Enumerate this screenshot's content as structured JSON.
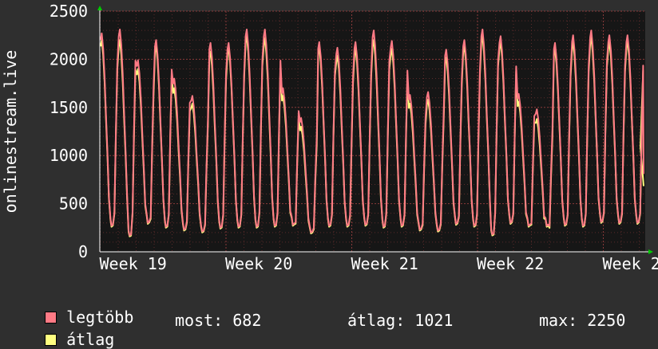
{
  "chart_data": {
    "type": "line",
    "ylabel": "onlinestream.live",
    "ylim": [
      0,
      2500
    ],
    "yticks": [
      0,
      500,
      1000,
      1500,
      2000,
      2500
    ],
    "xticks": [
      "Week 19",
      "Week 20",
      "Week 21",
      "Week 22",
      "Week 2"
    ],
    "grid": true,
    "legend_position": "bottom-left",
    "series": [
      {
        "name": "legtöbb",
        "color": "#ff7a85",
        "peaks": [
          2270,
          2310,
          1990,
          2200,
          1800,
          1620,
          2170,
          2170,
          2310,
          2310,
          1700,
          1390,
          2180,
          2120,
          2180,
          2300,
          2190,
          1630,
          1660,
          2100,
          2200,
          2310,
          2240,
          1640,
          1480,
          2170,
          2250,
          2300,
          2250,
          2250
        ],
        "troughs": [
          270,
          170,
          300,
          260,
          230,
          210,
          250,
          260,
          260,
          270,
          280,
          200,
          270,
          270,
          280,
          260,
          270,
          230,
          220,
          290,
          270,
          180,
          300,
          270,
          270,
          280,
          270,
          310,
          300,
          300
        ]
      },
      {
        "name": "átlag",
        "color": "#ffff80",
        "peaks": [
          2200,
          2200,
          1900,
          2140,
          1700,
          1540,
          2080,
          2120,
          2240,
          2220,
          1620,
          1300,
          2120,
          2040,
          2110,
          2200,
          2110,
          1540,
          1580,
          2020,
          2140,
          2240,
          2180,
          1560,
          1380,
          2110,
          2180,
          2230,
          2180,
          2190
        ],
        "troughs": [
          260,
          160,
          290,
          250,
          220,
          200,
          240,
          250,
          250,
          260,
          270,
          190,
          260,
          260,
          270,
          250,
          260,
          220,
          210,
          280,
          260,
          170,
          290,
          260,
          260,
          270,
          260,
          300,
          290,
          290
        ],
        "last": 682
      }
    ]
  },
  "legend": {
    "max_label": "legtöbb",
    "avg_label": "átlag"
  },
  "stats": {
    "now": "most: 682",
    "avg": "átlag: 1021",
    "max": "max: 2250"
  }
}
